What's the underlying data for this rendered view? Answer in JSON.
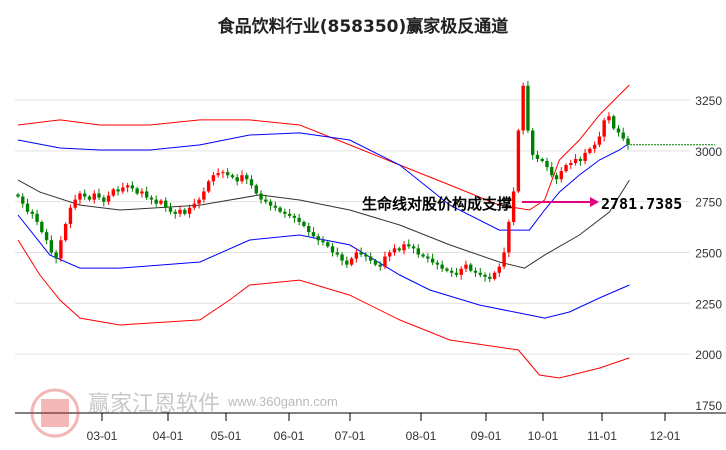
{
  "chart_data": {
    "type": "candlestick",
    "title": "食品饮料行业(858350)赢家极反通道",
    "xlabel": "",
    "ylabel": "",
    "ylim": [
      1750,
      3400
    ],
    "y_ticks": [
      3250,
      3000,
      2750,
      2500,
      2250,
      2000,
      1750
    ],
    "x_ticks": [
      "03-01",
      "04-01",
      "05-01",
      "06-01",
      "07-01",
      "08-01",
      "09-01",
      "10-01",
      "11-01",
      "12-01"
    ],
    "closes": [
      2775,
      2740,
      2700,
      2690,
      2650,
      2600,
      2560,
      2500,
      2470,
      2560,
      2640,
      2720,
      2760,
      2790,
      2775,
      2760,
      2790,
      2770,
      2750,
      2780,
      2810,
      2800,
      2820,
      2830,
      2815,
      2790,
      2800,
      2770,
      2760,
      2740,
      2755,
      2720,
      2700,
      2690,
      2710,
      2690,
      2720,
      2740,
      2760,
      2800,
      2850,
      2880,
      2890,
      2895,
      2880,
      2870,
      2850,
      2880,
      2860,
      2830,
      2790,
      2760,
      2750,
      2730,
      2720,
      2700,
      2690,
      2680,
      2670,
      2650,
      2630,
      2600,
      2580,
      2560,
      2550,
      2530,
      2500,
      2490,
      2460,
      2440,
      2470,
      2500,
      2490,
      2480,
      2460,
      2440,
      2430,
      2480,
      2500,
      2520,
      2510,
      2540,
      2530,
      2520,
      2490,
      2480,
      2470,
      2450,
      2440,
      2420,
      2410,
      2400,
      2390,
      2420,
      2440,
      2410,
      2400,
      2390,
      2380,
      2370,
      2400,
      2430,
      2500,
      2650,
      2800,
      3100,
      3320,
      3100,
      2980,
      2960,
      2950,
      2920,
      2880,
      2860,
      2900,
      2930,
      2940,
      2960,
      2950,
      2990,
      3010,
      3030,
      3070,
      3150,
      3170,
      3110,
      3090,
      3060,
      3030
    ],
    "bands": [
      {
        "name": "upper-outer",
        "color": "#ff0000",
        "points": [
          [
            0,
            3127
          ],
          [
            8.8,
            3152
          ],
          [
            17.2,
            3127
          ],
          [
            27.7,
            3127
          ],
          [
            38.2,
            3152
          ],
          [
            48.6,
            3152
          ],
          [
            59.1,
            3127
          ],
          [
            69.6,
            3029
          ],
          [
            80.1,
            2930
          ],
          [
            90.6,
            2832
          ],
          [
            101,
            2733
          ],
          [
            107.3,
            2709
          ],
          [
            110.5,
            2758
          ],
          [
            113.6,
            2955
          ],
          [
            117.8,
            3053
          ],
          [
            122,
            3176
          ],
          [
            126.2,
            3275
          ],
          [
            128.3,
            3324
          ]
        ]
      },
      {
        "name": "upper-inner",
        "color": "#0000ff",
        "points": [
          [
            0,
            3053
          ],
          [
            8.8,
            3014
          ],
          [
            17.2,
            3004
          ],
          [
            27.7,
            3004
          ],
          [
            38.2,
            3029
          ],
          [
            48.6,
            3078
          ],
          [
            59.1,
            3088
          ],
          [
            69.6,
            3053
          ],
          [
            80.1,
            2930
          ],
          [
            90.6,
            2733
          ],
          [
            101,
            2610
          ],
          [
            107.3,
            2610
          ],
          [
            110.5,
            2709
          ],
          [
            113.6,
            2797
          ],
          [
            117.8,
            2881
          ],
          [
            122,
            2955
          ],
          [
            126.2,
            3004
          ],
          [
            128.3,
            3038
          ]
        ]
      },
      {
        "name": "middle",
        "color": "#333333",
        "points": [
          [
            0,
            2856
          ],
          [
            4.6,
            2797
          ],
          [
            13,
            2733
          ],
          [
            21.4,
            2709
          ],
          [
            38.2,
            2733
          ],
          [
            50.7,
            2783
          ],
          [
            59.1,
            2758
          ],
          [
            69.6,
            2709
          ],
          [
            80.1,
            2635
          ],
          [
            90.6,
            2537
          ],
          [
            101,
            2453
          ],
          [
            106.3,
            2423
          ],
          [
            110.5,
            2487
          ],
          [
            117.8,
            2586
          ],
          [
            124.1,
            2699
          ],
          [
            128.3,
            2856
          ]
        ]
      },
      {
        "name": "lower-inner",
        "color": "#0000ff",
        "points": [
          [
            0,
            2684
          ],
          [
            6.7,
            2487
          ],
          [
            13,
            2423
          ],
          [
            21.4,
            2423
          ],
          [
            38.2,
            2453
          ],
          [
            48.6,
            2561
          ],
          [
            59.1,
            2586
          ],
          [
            69.6,
            2537
          ],
          [
            80.1,
            2389
          ],
          [
            86.4,
            2315
          ],
          [
            96.9,
            2241
          ],
          [
            107.3,
            2192
          ],
          [
            110.5,
            2177
          ],
          [
            115.7,
            2207
          ],
          [
            122,
            2276
          ],
          [
            128.3,
            2340
          ]
        ]
      },
      {
        "name": "lower-outer",
        "color": "#ff0000",
        "points": [
          [
            0,
            2561
          ],
          [
            4.6,
            2389
          ],
          [
            8.8,
            2266
          ],
          [
            13,
            2177
          ],
          [
            21.4,
            2143
          ],
          [
            38.2,
            2168
          ],
          [
            44.4,
            2266
          ],
          [
            48.6,
            2340
          ],
          [
            59.1,
            2364
          ],
          [
            69.6,
            2290
          ],
          [
            80.1,
            2168
          ],
          [
            90.6,
            2069
          ],
          [
            105,
            2020
          ],
          [
            109.4,
            1897
          ],
          [
            113.6,
            1882
          ],
          [
            122,
            1931
          ],
          [
            128.3,
            1981
          ]
        ]
      }
    ],
    "annotation": {
      "text": "生命线对股价构成支撑",
      "value": "2781.7385",
      "color": "#e6007e"
    },
    "last_line_color": "#008000",
    "up_color": "#ff0000",
    "down_color": "#008000"
  },
  "watermark": {
    "name": "赢家江恩软件",
    "url": "www.360gann.com",
    "seal": "江赢恩家"
  }
}
